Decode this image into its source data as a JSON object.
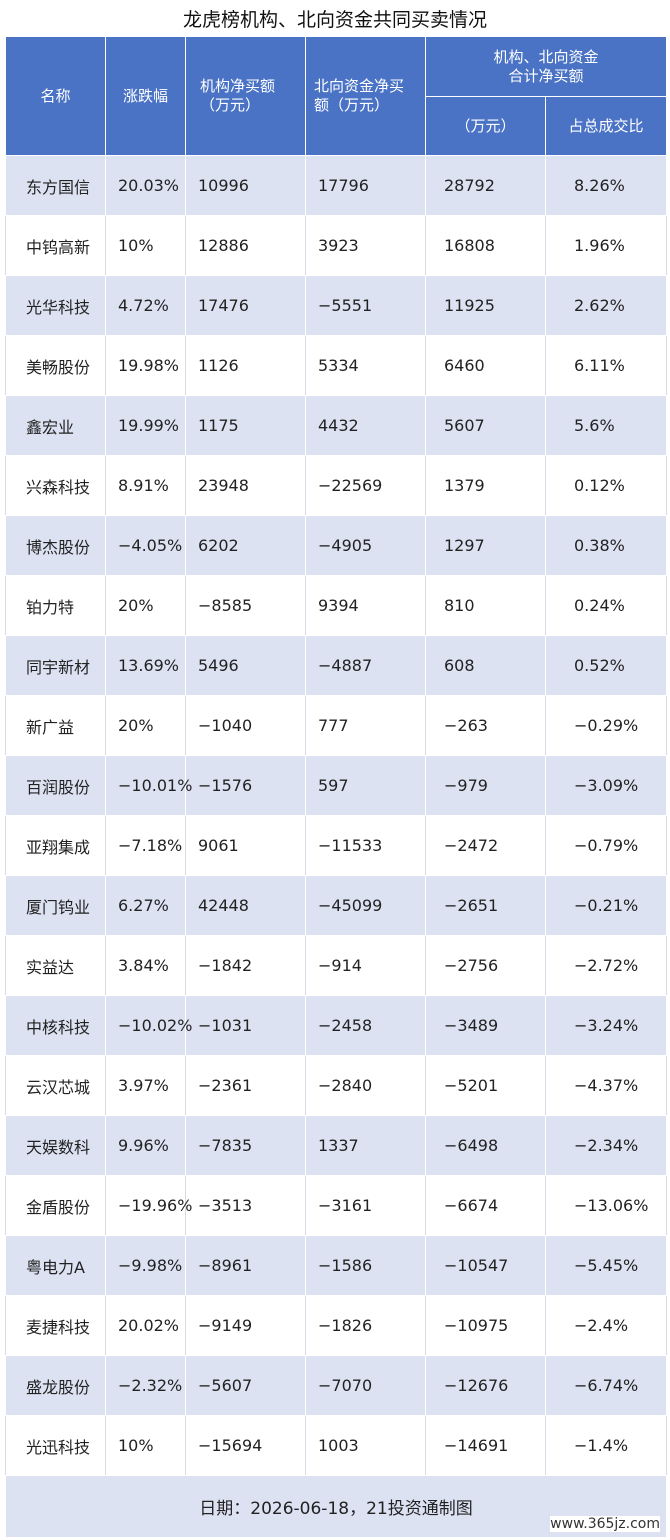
{
  "title": "龙虎榜机构、北向资金共同买卖情况",
  "headers": {
    "name": "名称",
    "change": "涨跌幅",
    "inst_line1": "机构净买额",
    "inst_line2": "（万元）",
    "north_line1": "北向资金净买",
    "north_line2": "额（万元）",
    "combined_line1": "机构、北向资金",
    "combined_line2": "合计净买额",
    "amount": "（万元）",
    "ratio": "占总成交比"
  },
  "rows": [
    {
      "name": "东方国信",
      "change": "20.03%",
      "inst": "10996",
      "north": "17796",
      "total": "28792",
      "ratio": "8.26%"
    },
    {
      "name": "中钨高新",
      "change": "10%",
      "inst": "12886",
      "north": "3923",
      "total": "16808",
      "ratio": "1.96%"
    },
    {
      "name": "光华科技",
      "change": "4.72%",
      "inst": "17476",
      "north": "−5551",
      "total": "11925",
      "ratio": "2.62%"
    },
    {
      "name": "美畅股份",
      "change": "19.98%",
      "inst": "1126",
      "north": "5334",
      "total": "6460",
      "ratio": "6.11%"
    },
    {
      "name": "鑫宏业",
      "change": "19.99%",
      "inst": "1175",
      "north": "4432",
      "total": "5607",
      "ratio": "5.6%"
    },
    {
      "name": "兴森科技",
      "change": "8.91%",
      "inst": "23948",
      "north": "−22569",
      "total": "1379",
      "ratio": "0.12%"
    },
    {
      "name": "博杰股份",
      "change": "−4.05%",
      "inst": "6202",
      "north": "−4905",
      "total": "1297",
      "ratio": "0.38%"
    },
    {
      "name": "铂力特",
      "change": "20%",
      "inst": "−8585",
      "north": "9394",
      "total": "810",
      "ratio": "0.24%"
    },
    {
      "name": "同宇新材",
      "change": "13.69%",
      "inst": "5496",
      "north": "−4887",
      "total": "608",
      "ratio": "0.52%"
    },
    {
      "name": "新广益",
      "change": "20%",
      "inst": "−1040",
      "north": "777",
      "total": "−263",
      "ratio": "−0.29%"
    },
    {
      "name": "百润股份",
      "change": "−10.01%",
      "inst": "−1576",
      "north": "597",
      "total": "−979",
      "ratio": "−3.09%"
    },
    {
      "name": "亚翔集成",
      "change": "−7.18%",
      "inst": "9061",
      "north": "−11533",
      "total": "−2472",
      "ratio": "−0.79%"
    },
    {
      "name": "厦门钨业",
      "change": "6.27%",
      "inst": "42448",
      "north": "−45099",
      "total": "−2651",
      "ratio": "−0.21%"
    },
    {
      "name": "实益达",
      "change": "3.84%",
      "inst": "−1842",
      "north": "−914",
      "total": "−2756",
      "ratio": "−2.72%"
    },
    {
      "name": "中核科技",
      "change": "−10.02%",
      "inst": "−1031",
      "north": "−2458",
      "total": "−3489",
      "ratio": "−3.24%"
    },
    {
      "name": "云汉芯城",
      "change": "3.97%",
      "inst": "−2361",
      "north": "−2840",
      "total": "−5201",
      "ratio": "−4.37%"
    },
    {
      "name": "天娱数科",
      "change": "9.96%",
      "inst": "−7835",
      "north": "1337",
      "total": "−6498",
      "ratio": "−2.34%"
    },
    {
      "name": "金盾股份",
      "change": "−19.96%",
      "inst": "−3513",
      "north": "−3161",
      "total": "−6674",
      "ratio": "−13.06%"
    },
    {
      "name": "粤电力A",
      "change": "−9.98%",
      "inst": "−8961",
      "north": "−1586",
      "total": "−10547",
      "ratio": "−5.45%"
    },
    {
      "name": "麦捷科技",
      "change": "20.02%",
      "inst": "−9149",
      "north": "−1826",
      "total": "−10975",
      "ratio": "−2.4%"
    },
    {
      "name": "盛龙股份",
      "change": "−2.32%",
      "inst": "−5607",
      "north": "−7070",
      "total": "−12676",
      "ratio": "−6.74%"
    },
    {
      "name": "光迅科技",
      "change": "10%",
      "inst": "−15694",
      "north": "1003",
      "total": "−14691",
      "ratio": "−1.4%"
    }
  ],
  "footer": "日期：2026-06-18，21投资通制图",
  "watermark": "www.365jz.com",
  "colors": {
    "header_bg": "#4a73c6",
    "stripe": "#dde2f3"
  }
}
